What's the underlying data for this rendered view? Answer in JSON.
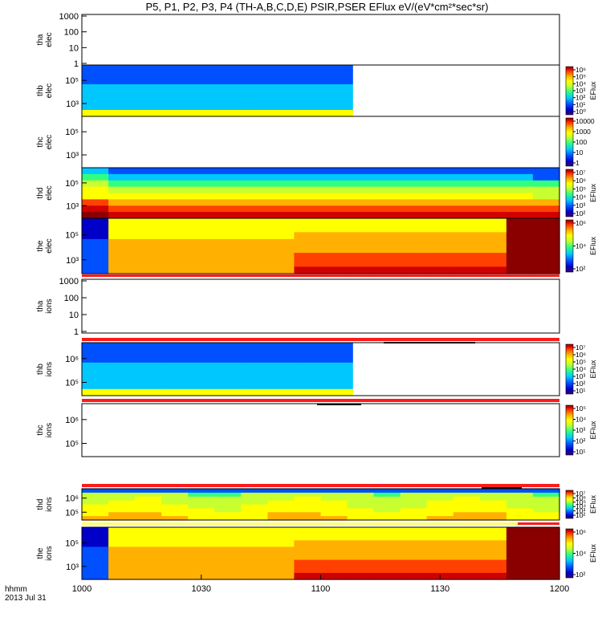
{
  "title": "P5, P1, P2, P3, P4 (TH-A,B,C,D,E) PSIR,PSER EFlux eV/(eV*cm²*sec*sr)",
  "time_axis": {
    "ticks": [
      "1000",
      "1030",
      "1100",
      "1130",
      "1200"
    ],
    "unit_label": "hhmm",
    "date_label": "2013 Jul 31"
  },
  "chart_data": {
    "type": "heatmap",
    "title": "P5, P1, P2, P3, P4 (TH-A,B,C,D,E) PSIR,PSER EFlux eV/(eV*cm²*sec*sr)",
    "x_range": [
      "10:00",
      "12:00"
    ],
    "x_ticks": [
      "1000",
      "1030",
      "1100",
      "1130",
      "1200"
    ],
    "panels": [
      {
        "id": "tha-elec",
        "ylabel": [
          "tha",
          "elec"
        ],
        "y_ticks": [
          "1000",
          "100",
          "10",
          "1"
        ],
        "data_coverage": "none",
        "colorbar": null
      },
      {
        "id": "thb-elec",
        "ylabel": [
          "thb",
          "elec"
        ],
        "y_ticks": [
          "10⁵",
          "10³"
        ],
        "data_coverage": "10:00-11:08",
        "colorbar": {
          "label": "EFlux",
          "ticks": [
            "10⁶",
            "10⁵",
            "10⁴",
            "10³",
            "10²",
            "10¹",
            "10⁰"
          ]
        }
      },
      {
        "id": "thc-elec",
        "ylabel": [
          "thc",
          "elec"
        ],
        "y_ticks": [
          "10⁵",
          "10³"
        ],
        "data_coverage": "none",
        "colorbar": {
          "label": "",
          "ticks": [
            "10000",
            "1000",
            "100",
            "10",
            "1"
          ]
        }
      },
      {
        "id": "thd-elec",
        "ylabel": [
          "thd",
          "elec"
        ],
        "y_ticks": [
          "10⁵",
          "10³"
        ],
        "data_coverage": "10:00-12:00",
        "colorbar": {
          "label": "EFlux",
          "ticks": [
            "10⁷",
            "10⁶",
            "10⁵",
            "10⁴",
            "10³",
            "10²"
          ]
        }
      },
      {
        "id": "the-elec",
        "ylabel": [
          "the",
          "elec"
        ],
        "y_ticks": [
          "10⁵",
          "10³"
        ],
        "data_coverage": "10:00-12:00",
        "colorbar": {
          "label": "EFlux",
          "ticks": [
            "10⁶",
            "10⁴",
            "10²"
          ]
        }
      },
      {
        "id": "tha-ions",
        "ylabel": [
          "tha",
          "ions"
        ],
        "y_ticks": [
          "1000",
          "100",
          "10",
          "1"
        ],
        "data_coverage": "none",
        "colorbar": null
      },
      {
        "id": "thb-ions",
        "ylabel": [
          "thb",
          "ions"
        ],
        "y_ticks": [
          "10⁶",
          "10⁵"
        ],
        "data_coverage": "10:00-11:08",
        "colorbar": {
          "label": "EFlux",
          "ticks": [
            "10⁷",
            "10⁶",
            "10⁵",
            "10⁴",
            "10³",
            "10²",
            "10¹"
          ]
        }
      },
      {
        "id": "thc-ions",
        "ylabel": [
          "thc",
          "ions"
        ],
        "y_ticks": [
          "10⁶",
          "10⁵"
        ],
        "data_coverage": "none",
        "colorbar": {
          "label": "EFlux",
          "ticks": [
            "10⁵",
            "10⁴",
            "10³",
            "10²",
            "10¹"
          ]
        }
      },
      {
        "id": "thd-ions",
        "ylabel": [
          "thd",
          "ions"
        ],
        "y_ticks": [
          "10⁶",
          "10⁵"
        ],
        "data_coverage": "10:00-12:00",
        "colorbar": {
          "label": "EFlux",
          "ticks": [
            "10⁷",
            "10⁶",
            "10⁵",
            "10⁴",
            "10³",
            "10²"
          ]
        }
      },
      {
        "id": "the-ions",
        "ylabel": [
          "the",
          "ions"
        ],
        "y_ticks": [
          "10⁵",
          "10³"
        ],
        "data_coverage": "10:00-12:00",
        "colorbar": {
          "label": "EFlux",
          "ticks": [
            "10⁶",
            "10⁴",
            "10²"
          ]
        }
      }
    ]
  },
  "colors": {
    "red_bar": "#ff1a1a",
    "yellow_bar": "#ffff66",
    "colormap": [
      "#3a0070",
      "#0000c8",
      "#0050ff",
      "#00c8ff",
      "#30ff80",
      "#c8ff30",
      "#ffff00",
      "#ffb000",
      "#ff4000",
      "#d00000",
      "#8a0000"
    ]
  }
}
